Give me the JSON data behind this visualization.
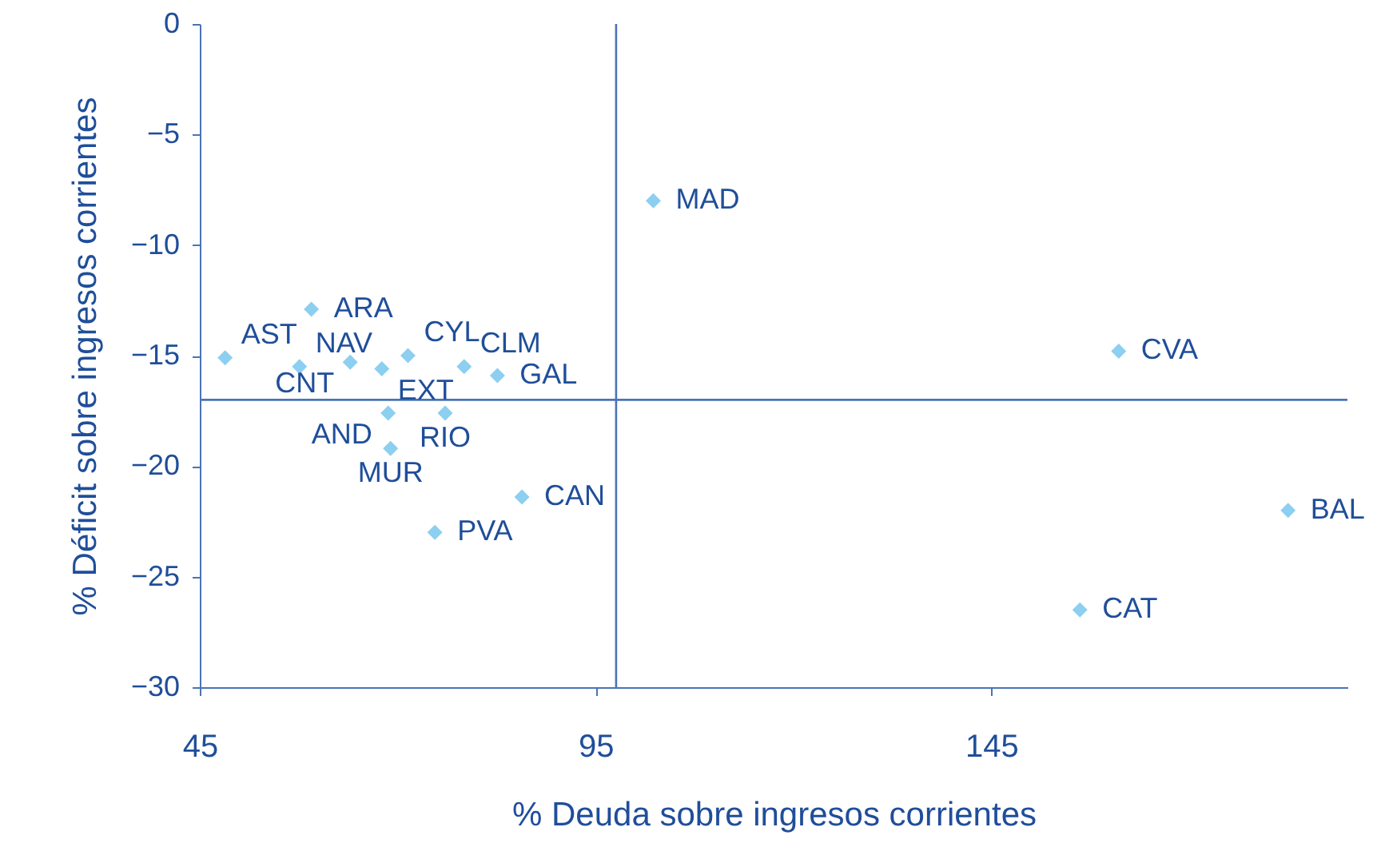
{
  "chart_data": {
    "type": "scatter",
    "xlabel": "% Deuda sobre ingresos corrientes",
    "ylabel": "% Déficit sobre ingresos corrientes",
    "series": [
      {
        "name": "AST",
        "color": "#8ccff0",
        "x": [
          48.2
        ],
        "values": [
          -15.1
        ]
      },
      {
        "name": "ARA",
        "color": "#8ccff0",
        "x": [
          59.1
        ],
        "values": [
          -12.9
        ]
      },
      {
        "name": "NAV",
        "color": "#8ccff0",
        "x": [
          57.6
        ],
        "values": [
          -15.5
        ]
      },
      {
        "name": "CNT",
        "color": "#8ccff0",
        "x": [
          64.0
        ],
        "values": [
          -15.3
        ]
      },
      {
        "name": "EXT",
        "color": "#8ccff0",
        "x": [
          68.0
        ],
        "values": [
          -15.6
        ]
      },
      {
        "name": "CYL",
        "color": "#8ccff0",
        "x": [
          71.3
        ],
        "values": [
          -15.0
        ]
      },
      {
        "name": "CLM",
        "color": "#8ccff0",
        "x": [
          78.4
        ],
        "values": [
          -15.5
        ]
      },
      {
        "name": "GAL",
        "color": "#8ccff0",
        "x": [
          82.6
        ],
        "values": [
          -15.9
        ]
      },
      {
        "name": "AND",
        "color": "#8ccff0",
        "x": [
          68.8
        ],
        "values": [
          -17.6
        ]
      },
      {
        "name": "RIO",
        "color": "#8ccff0",
        "x": [
          76.0
        ],
        "values": [
          -17.6
        ]
      },
      {
        "name": "MUR",
        "color": "#8ccff0",
        "x": [
          69.1
        ],
        "values": [
          -19.2
        ]
      },
      {
        "name": "CAN",
        "color": "#8ccff0",
        "x": [
          85.7
        ],
        "values": [
          -21.4
        ]
      },
      {
        "name": "PVA",
        "color": "#8ccff0",
        "x": [
          74.7
        ],
        "values": [
          -23.0
        ]
      },
      {
        "name": "MAD",
        "color": "#8ccff0",
        "x": [
          102.3
        ],
        "values": [
          -8.0
        ]
      },
      {
        "name": "CVA",
        "color": "#8ccff0",
        "x": [
          161.1
        ],
        "values": [
          -14.8
        ]
      },
      {
        "name": "BAL",
        "color": "#8ccff0",
        "x": [
          182.5
        ],
        "values": [
          -22.0
        ]
      },
      {
        "name": "CAT",
        "color": "#8ccff0",
        "x": [
          156.2
        ],
        "values": [
          -26.5
        ]
      }
    ],
    "marker": "diamond",
    "xlim": [
      45,
      190
    ],
    "xticks": [
      45,
      95,
      145
    ],
    "ylim": [
      -30,
      0
    ],
    "yticks": [
      -30,
      -25,
      -20,
      -15,
      -10,
      -5,
      0
    ],
    "ref_lines": [
      {
        "axis": "y",
        "value": -17.0,
        "color": "#4a74b5"
      },
      {
        "axis": "x",
        "value": 97.6,
        "color": "#4a74b5"
      }
    ]
  }
}
